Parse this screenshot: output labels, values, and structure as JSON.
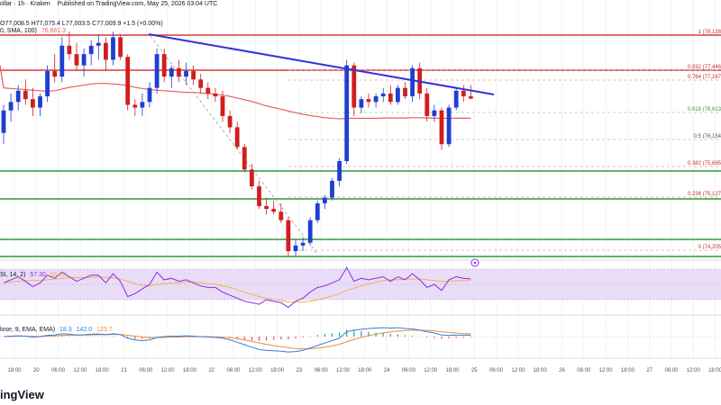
{
  "header": {
    "source_line": "ollar · 1h · Kraken",
    "published": "Published on TradingView.com, May 25, 2026 03:04 UTC",
    "ohlc_open": "O77,008.5",
    "ohlc_high": "H77,075.4",
    "ohlc_low": "L77,003.5",
    "ohlc_close": "C77,009.9",
    "ohlc_change": "+1.5 (+0.00%)",
    "sma_label": "0, SMA, 100)",
    "sma_value": "76,661.3"
  },
  "rsi_pane": {
    "label": "SI, 14, 2)",
    "value1": "57.30",
    "value2": "55.02"
  },
  "macd_pane": {
    "label": "lose, 9, EMA, EMA)",
    "value1": "18.3",
    "value2": "142.0",
    "value3": "123.7"
  },
  "brand": {
    "text": "ingView"
  },
  "colors": {
    "up": "#1e3fd0",
    "down": "#d01e1e",
    "sma": "#e85c5c",
    "trend": "#3232d8",
    "fib_red": "#d23c3c",
    "support_green": "#2e9a3a",
    "rsi_line": "#8a2be2",
    "rsi_band": "#e9dcf7"
  },
  "chart_data": {
    "type": "candlestick",
    "x_ticks": [
      "18:00",
      "20",
      "06:00",
      "12:00",
      "18:00",
      "21",
      "06:00",
      "12:00",
      "18:00",
      "22",
      "06:00",
      "12:00",
      "18:00",
      "23",
      "06:00",
      "12:00",
      "18:00",
      "24",
      "06:00",
      "12:00",
      "18:00",
      "25",
      "06:00",
      "12:00",
      "18:00",
      "26",
      "06:00",
      "12:00",
      "18:00",
      "27",
      "06:00",
      "12:00",
      "18:00"
    ],
    "fib_levels": [
      {
        "ratio": "1",
        "price": "(78,138"
      },
      {
        "ratio": "0.832",
        "price": "(77,446"
      },
      {
        "ratio": "0.764",
        "price": "(77,167"
      },
      {
        "ratio": "0.618",
        "price": "(76,613"
      },
      {
        "ratio": "0.5",
        "price": "(76,154"
      },
      {
        "ratio": "0.382",
        "price": "(75,695"
      },
      {
        "ratio": "0.236",
        "price": "(75,127"
      },
      {
        "ratio": "0",
        "price": "(74,205"
      }
    ],
    "candles": [
      [
        76400,
        76900,
        76200,
        76800
      ],
      [
        76800,
        77100,
        76600,
        76950
      ],
      [
        76950,
        77250,
        76800,
        77150
      ],
      [
        77150,
        77350,
        76900,
        77000
      ],
      [
        77000,
        77200,
        76700,
        76850
      ],
      [
        76850,
        77100,
        76700,
        77050
      ],
      [
        77050,
        77600,
        76950,
        77500
      ],
      [
        77500,
        77800,
        77300,
        77400
      ],
      [
        77400,
        78100,
        77300,
        77950
      ],
      [
        77950,
        78200,
        77700,
        77800
      ],
      [
        77800,
        78000,
        77500,
        77600
      ],
      [
        77600,
        77900,
        77400,
        77800
      ],
      [
        77800,
        78050,
        77600,
        77950
      ],
      [
        77950,
        78150,
        77700,
        78000
      ],
      [
        78000,
        78100,
        77500,
        77700
      ],
      [
        77700,
        78200,
        77600,
        78100
      ],
      [
        78100,
        78150,
        77700,
        77750
      ],
      [
        77750,
        77800,
        76800,
        76900
      ],
      [
        76900,
        77000,
        76700,
        76850
      ],
      [
        76850,
        77100,
        76700,
        76950
      ],
      [
        76950,
        77300,
        76850,
        77200
      ],
      [
        77200,
        77900,
        77100,
        77800
      ],
      [
        77800,
        77900,
        77300,
        77400
      ],
      [
        77400,
        77600,
        77200,
        77550
      ],
      [
        77550,
        77700,
        77300,
        77400
      ],
      [
        77400,
        77650,
        77250,
        77500
      ],
      [
        77500,
        77600,
        77250,
        77350
      ],
      [
        77350,
        77450,
        77100,
        77200
      ],
      [
        77200,
        77300,
        77000,
        77100
      ],
      [
        77100,
        77200,
        76950,
        77050
      ],
      [
        77050,
        77150,
        76600,
        76700
      ],
      [
        76700,
        76800,
        76400,
        76500
      ],
      [
        76500,
        76600,
        76100,
        76150
      ],
      [
        76150,
        76200,
        75700,
        75750
      ],
      [
        75750,
        75850,
        75400,
        75450
      ],
      [
        75450,
        75550,
        75050,
        75100
      ],
      [
        75100,
        75250,
        74950,
        75050
      ],
      [
        75050,
        75200,
        74950,
        75000
      ],
      [
        75000,
        75150,
        74800,
        74850
      ],
      [
        74850,
        74900,
        74200,
        74300
      ],
      [
        74300,
        74500,
        74200,
        74400
      ],
      [
        74400,
        74550,
        74300,
        74450
      ],
      [
        74450,
        74900,
        74400,
        74850
      ],
      [
        74850,
        75200,
        74800,
        75150
      ],
      [
        75150,
        75300,
        75050,
        75250
      ],
      [
        75250,
        75600,
        75200,
        75550
      ],
      [
        75550,
        75950,
        75450,
        75900
      ],
      [
        75900,
        77700,
        75850,
        77600
      ],
      [
        77600,
        77650,
        76700,
        76850
      ],
      [
        76850,
        77050,
        76750,
        77000
      ],
      [
        77000,
        77100,
        76850,
        76950
      ],
      [
        76950,
        77100,
        76850,
        77050
      ],
      [
        77050,
        77200,
        76950,
        77100
      ],
      [
        77100,
        77250,
        76900,
        76950
      ],
      [
        76950,
        77250,
        76900,
        77200
      ],
      [
        77200,
        77300,
        77000,
        77050
      ],
      [
        77050,
        77600,
        76950,
        77550
      ],
      [
        77550,
        77650,
        77000,
        77100
      ],
      [
        77100,
        77200,
        76600,
        76700
      ],
      [
        76700,
        76900,
        76600,
        76800
      ],
      [
        76800,
        76850,
        76100,
        76200
      ],
      [
        76200,
        76900,
        76150,
        76850
      ],
      [
        76850,
        77200,
        76800,
        77150
      ],
      [
        77150,
        77250,
        76950,
        77050
      ],
      [
        77050,
        77250,
        77000,
        77010
      ]
    ],
    "sma": [
      77200,
      77190,
      77180,
      77170,
      77160,
      77150,
      77140,
      77150,
      77180,
      77210,
      77230,
      77250,
      77270,
      77280,
      77280,
      77270,
      77260,
      77240,
      77210,
      77190,
      77170,
      77160,
      77150,
      77140,
      77130,
      77120,
      77120,
      77110,
      77100,
      77090,
      77070,
      77050,
      77020,
      76990,
      76960,
      76920,
      76880,
      76850,
      76820,
      76790,
      76760,
      76730,
      76710,
      76690,
      76670,
      76660,
      76650,
      76660,
      76660,
      76660,
      76660,
      76660,
      76665,
      76665,
      76665,
      76665,
      76670,
      76670,
      76665,
      76665,
      76660,
      76660,
      76661,
      76661,
      76661
    ],
    "rsi": [
      52,
      56,
      60,
      54,
      47,
      52,
      62,
      58,
      66,
      60,
      54,
      58,
      62,
      62,
      52,
      64,
      54,
      34,
      38,
      44,
      50,
      66,
      56,
      58,
      54,
      56,
      52,
      48,
      46,
      46,
      40,
      36,
      32,
      28,
      26,
      24,
      30,
      28,
      26,
      20,
      28,
      32,
      40,
      46,
      48,
      52,
      56,
      72,
      54,
      58,
      56,
      58,
      60,
      54,
      60,
      56,
      64,
      56,
      46,
      50,
      42,
      56,
      60,
      58,
      57
    ],
    "rsi_ma": [
      52,
      53,
      54,
      55,
      55,
      55,
      56,
      57,
      58,
      59,
      59,
      59,
      59,
      60,
      59,
      59,
      57,
      54,
      51,
      49,
      48,
      50,
      51,
      52,
      52,
      53,
      53,
      52,
      51,
      50,
      48,
      46,
      43,
      40,
      37,
      34,
      32,
      30,
      29,
      27,
      27,
      27,
      28,
      30,
      32,
      35,
      38,
      42,
      45,
      48,
      51,
      53,
      55,
      56,
      56,
      57,
      57,
      57,
      56,
      55,
      54,
      54,
      55,
      55,
      55
    ],
    "macd": [
      0,
      5,
      10,
      5,
      -5,
      0,
      15,
      20,
      35,
      30,
      20,
      22,
      30,
      32,
      25,
      35,
      25,
      -20,
      -40,
      -50,
      -40,
      -10,
      0,
      5,
      5,
      10,
      5,
      0,
      -5,
      -10,
      -20,
      -40,
      -70,
      -100,
      -130,
      -160,
      -170,
      -175,
      -180,
      -190,
      -185,
      -170,
      -140,
      -110,
      -80,
      -50,
      -20,
      60,
      80,
      90,
      100,
      105,
      110,
      105,
      110,
      100,
      95,
      80,
      60,
      45,
      20,
      15,
      18,
      18,
      18
    ],
    "signal": [
      0,
      2,
      5,
      5,
      3,
      2,
      5,
      8,
      14,
      18,
      18,
      19,
      21,
      23,
      24,
      26,
      26,
      17,
      6,
      -5,
      -12,
      -12,
      -10,
      -7,
      -5,
      -2,
      -1,
      -1,
      -2,
      -4,
      -7,
      -14,
      -25,
      -40,
      -58,
      -78,
      -96,
      -112,
      -125,
      -138,
      -148,
      -152,
      -150,
      -142,
      -130,
      -114,
      -95,
      -64,
      -35,
      -10,
      12,
      30,
      46,
      58,
      68,
      75,
      78,
      79,
      76,
      70,
      60,
      50,
      44,
      38,
      34
    ]
  }
}
